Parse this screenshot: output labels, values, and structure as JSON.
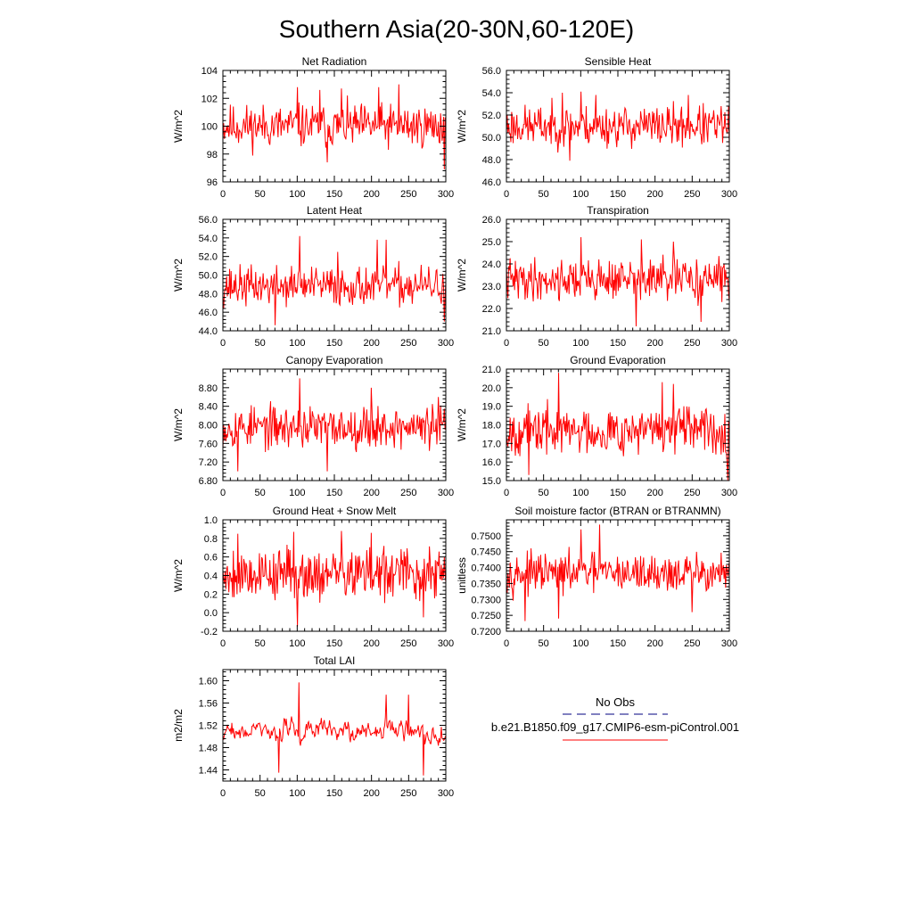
{
  "figure": {
    "title": "Southern Asia(20-30N,60-120E)",
    "line_color": "#ff0000",
    "obs_color": "#000080",
    "legend": {
      "obs_label": "No Obs",
      "model_label": "b.e21.B1850.f09_g17.CMIP6-esm-piControl.001"
    }
  },
  "chart_data": [
    {
      "type": "line",
      "title": "Net Radiation",
      "ylabel": "W/m^2",
      "xlim": [
        0,
        300
      ],
      "ylim": [
        96,
        104
      ],
      "xticks": [
        "0",
        "50",
        "100",
        "150",
        "200",
        "250",
        "300"
      ],
      "yticks": [
        "96",
        "98",
        "100",
        "102",
        "104"
      ],
      "series": [
        {
          "x_start": 0,
          "x_end": 300,
          "n_points": 300,
          "mean": 100.0,
          "amplitude": 1.1,
          "min": 96.9,
          "max": 103.0,
          "seed": 11,
          "peaks": [
            [
              100,
              102.8
            ],
            [
              130,
              102.6
            ],
            [
              160,
              102.7
            ],
            [
              210,
              102.8
            ],
            [
              237,
              103.0
            ],
            [
              298,
              96.9
            ],
            [
              140,
              97.4
            ]
          ]
        }
      ]
    },
    {
      "type": "line",
      "title": "Sensible Heat",
      "ylabel": "W/m^2",
      "xlim": [
        0,
        300
      ],
      "ylim": [
        46.0,
        56.0
      ],
      "xticks": [
        "0",
        "50",
        "100",
        "150",
        "200",
        "250",
        "300"
      ],
      "yticks": [
        "46.0",
        "48.0",
        "50.0",
        "52.0",
        "54.0",
        "56.0"
      ],
      "series": [
        {
          "x_start": 0,
          "x_end": 300,
          "n_points": 300,
          "mean": 51.0,
          "amplitude": 1.3,
          "min": 47.9,
          "max": 54.2,
          "seed": 23,
          "peaks": [
            [
              100,
              54.1
            ],
            [
              75,
              54.0
            ],
            [
              120,
              53.8
            ],
            [
              245,
              53.8
            ],
            [
              85,
              47.9
            ]
          ]
        }
      ]
    },
    {
      "type": "line",
      "title": "Latent Heat",
      "ylabel": "W/m^2",
      "xlim": [
        0,
        300
      ],
      "ylim": [
        44.0,
        56.0
      ],
      "xticks": [
        "0",
        "50",
        "100",
        "150",
        "200",
        "250",
        "300"
      ],
      "yticks": [
        "44.0",
        "46.0",
        "48.0",
        "50.0",
        "52.0",
        "54.0",
        "56.0"
      ],
      "series": [
        {
          "x_start": 0,
          "x_end": 300,
          "n_points": 300,
          "mean": 48.8,
          "amplitude": 1.5,
          "min": 44.6,
          "max": 54.2,
          "seed": 37,
          "peaks": [
            [
              103,
              54.2
            ],
            [
              208,
              53.8
            ],
            [
              220,
              53.8
            ],
            [
              155,
              52.5
            ],
            [
              70,
              44.6
            ],
            [
              298,
              45.0
            ]
          ]
        }
      ]
    },
    {
      "type": "line",
      "title": "Transpiration",
      "ylabel": "W/m^2",
      "xlim": [
        0,
        300
      ],
      "ylim": [
        21.0,
        26.0
      ],
      "xticks": [
        "0",
        "50",
        "100",
        "150",
        "200",
        "250",
        "300"
      ],
      "yticks": [
        "21.0",
        "22.0",
        "23.0",
        "24.0",
        "25.0",
        "26.0"
      ],
      "series": [
        {
          "x_start": 0,
          "x_end": 300,
          "n_points": 300,
          "mean": 23.3,
          "amplitude": 0.65,
          "min": 21.2,
          "max": 25.2,
          "seed": 41,
          "peaks": [
            [
              100,
              25.2
            ],
            [
              182,
              25.1
            ],
            [
              225,
              25.0
            ],
            [
              175,
              21.2
            ],
            [
              262,
              21.4
            ]
          ]
        }
      ]
    },
    {
      "type": "line",
      "title": "Canopy Evaporation",
      "ylabel": "W/m^2",
      "xlim": [
        0,
        300
      ],
      "ylim": [
        6.8,
        9.2
      ],
      "xticks": [
        "0",
        "50",
        "100",
        "150",
        "200",
        "250",
        "300"
      ],
      "yticks": [
        "6.80",
        "7.20",
        "7.60",
        "8.00",
        "8.40",
        "8.80"
      ],
      "series": [
        {
          "x_start": 0,
          "x_end": 300,
          "n_points": 300,
          "mean": 7.95,
          "amplitude": 0.32,
          "min": 6.97,
          "max": 9.0,
          "seed": 53,
          "peaks": [
            [
              103,
              9.0
            ],
            [
              200,
              8.8
            ],
            [
              20,
              7.0
            ],
            [
              140,
              7.0
            ],
            [
              290,
              8.6
            ]
          ]
        }
      ]
    },
    {
      "type": "line",
      "title": "Ground Evaporation",
      "ylabel": "W/m^2",
      "xlim": [
        0,
        300
      ],
      "ylim": [
        15.0,
        21.0
      ],
      "xticks": [
        "0",
        "50",
        "100",
        "150",
        "200",
        "250",
        "300"
      ],
      "yticks": [
        "15.0",
        "16.0",
        "17.0",
        "18.0",
        "19.0",
        "20.0",
        "21.0"
      ],
      "series": [
        {
          "x_start": 0,
          "x_end": 300,
          "n_points": 300,
          "mean": 17.7,
          "amplitude": 0.9,
          "min": 15.0,
          "max": 20.8,
          "seed": 67,
          "peaks": [
            [
              70,
              20.8
            ],
            [
              210,
              20.3
            ],
            [
              225,
              20.2
            ],
            [
              298,
              15.0
            ],
            [
              30,
              15.3
            ]
          ]
        }
      ]
    },
    {
      "type": "line",
      "title": "Ground Heat + Snow Melt",
      "ylabel": "W/m^2",
      "xlim": [
        0,
        300
      ],
      "ylim": [
        -0.2,
        1.0
      ],
      "xticks": [
        "0",
        "50",
        "100",
        "150",
        "200",
        "250",
        "300"
      ],
      "yticks": [
        "-0.2",
        "0.0",
        "0.2",
        "0.4",
        "0.6",
        "0.8",
        "1.0"
      ],
      "series": [
        {
          "x_start": 0,
          "x_end": 300,
          "n_points": 300,
          "mean": 0.42,
          "amplitude": 0.2,
          "min": -0.15,
          "max": 0.88,
          "seed": 79,
          "peaks": [
            [
              100,
              -0.15
            ],
            [
              160,
              0.88
            ],
            [
              20,
              0.85
            ],
            [
              95,
              0.87
            ],
            [
              200,
              0.86
            ],
            [
              270,
              -0.05
            ]
          ]
        }
      ]
    },
    {
      "type": "line",
      "title": "Soil moisture factor (BTRAN or BTRANMN)",
      "ylabel": "unitless",
      "xlim": [
        0,
        300
      ],
      "ylim": [
        0.72,
        0.755
      ],
      "xticks": [
        "0",
        "50",
        "100",
        "150",
        "200",
        "250",
        "300"
      ],
      "yticks": [
        "0.7200",
        "0.7250",
        "0.7300",
        "0.7350",
        "0.7400",
        "0.7450",
        "0.7500"
      ],
      "series": [
        {
          "x_start": 0,
          "x_end": 300,
          "n_points": 300,
          "mean": 0.7382,
          "amplitude": 0.0042,
          "min": 0.7232,
          "max": 0.7535,
          "seed": 97,
          "peaks": [
            [
              125,
              0.7535
            ],
            [
              100,
              0.752
            ],
            [
              25,
              0.7232
            ],
            [
              70,
              0.724
            ],
            [
              250,
              0.726
            ]
          ]
        }
      ]
    },
    {
      "type": "line",
      "title": "Total LAI",
      "ylabel": "m2/m2",
      "xlim": [
        0,
        300
      ],
      "ylim": [
        1.42,
        1.62
      ],
      "xticks": [
        "0",
        "50",
        "100",
        "150",
        "200",
        "250",
        "300"
      ],
      "yticks": [
        "1.44",
        "1.48",
        "1.52",
        "1.56",
        "1.60"
      ],
      "series": [
        {
          "x_start": 0,
          "x_end": 300,
          "n_points": 300,
          "mean": 1.51,
          "amplitude": 0.028,
          "min": 1.43,
          "max": 1.597,
          "seed": 109,
          "peaks": [
            [
              102,
              1.597
            ],
            [
              220,
              1.575
            ],
            [
              250,
              1.575
            ],
            [
              270,
              1.43
            ],
            [
              75,
              1.435
            ]
          ],
          "smooth": 0.6
        }
      ]
    }
  ]
}
